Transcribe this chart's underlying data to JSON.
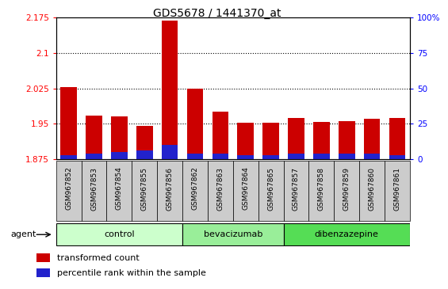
{
  "title": "GDS5678 / 1441370_at",
  "samples": [
    "GSM967852",
    "GSM967853",
    "GSM967854",
    "GSM967855",
    "GSM967856",
    "GSM967862",
    "GSM967863",
    "GSM967864",
    "GSM967865",
    "GSM967857",
    "GSM967858",
    "GSM967859",
    "GSM967860",
    "GSM967861"
  ],
  "red_values": [
    2.028,
    1.968,
    1.965,
    1.945,
    2.168,
    2.025,
    1.975,
    1.952,
    1.952,
    1.962,
    1.954,
    1.955,
    1.96,
    1.963
  ],
  "blue_values": [
    3,
    4,
    5,
    6,
    10,
    4,
    4,
    3,
    3,
    4,
    4,
    4,
    4,
    3
  ],
  "ymin": 1.875,
  "ymax": 2.175,
  "yticks": [
    1.875,
    1.95,
    2.025,
    2.1,
    2.175
  ],
  "ytick_labels": [
    "1.875",
    "1.95",
    "2.025",
    "2.1",
    "2.175"
  ],
  "y2min": 0,
  "y2max": 100,
  "y2ticks": [
    0,
    25,
    50,
    75,
    100
  ],
  "y2tick_labels": [
    "0",
    "25",
    "50",
    "75",
    "100%"
  ],
  "groups": [
    {
      "label": "control",
      "start": 0,
      "end": 5
    },
    {
      "label": "bevacizumab",
      "start": 5,
      "end": 9
    },
    {
      "label": "dibenzazepine",
      "start": 9,
      "end": 14
    }
  ],
  "group_colors": [
    "#ccffcc",
    "#99ee99",
    "#55dd55"
  ],
  "agent_label": "agent",
  "legend_red": "transformed count",
  "legend_blue": "percentile rank within the sample",
  "bar_width": 0.65,
  "red_color": "#cc0000",
  "blue_color": "#2222cc"
}
